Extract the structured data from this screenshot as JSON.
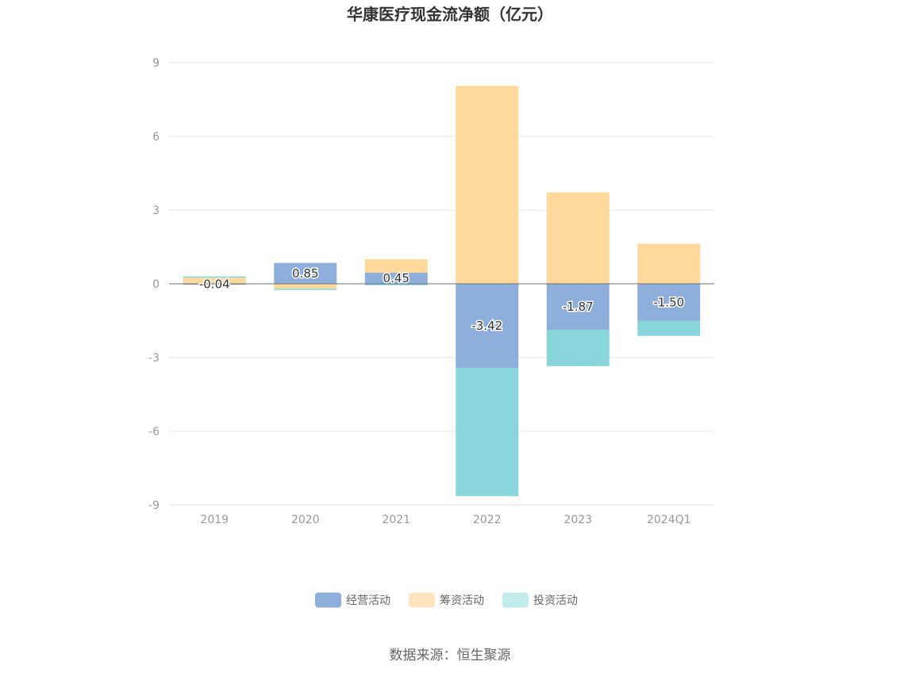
{
  "chart_data": {
    "type": "bar",
    "stacked": true,
    "title": "华康医疗现金流净额（亿元）",
    "categories": [
      "2019",
      "2020",
      "2021",
      "2022",
      "2023",
      "2024Q1"
    ],
    "ylim": [
      -9,
      9
    ],
    "yticks": [
      9,
      6,
      3,
      0,
      -3,
      -6,
      -9
    ],
    "grid": true,
    "legend_position": "bottom",
    "series": [
      {
        "name": "经营活动",
        "color": "#8EAEDC",
        "values": [
          -0.04,
          0.85,
          0.45,
          -3.42,
          -1.87,
          -1.5
        ],
        "labels": [
          "-0.04",
          "0.85",
          "0.45",
          "-3.42",
          "-1.87",
          "-1.50"
        ]
      },
      {
        "name": "筹资活动",
        "color": "#FFD89C",
        "values": [
          0.25,
          -0.2,
          0.55,
          8.05,
          3.72,
          1.63
        ]
      },
      {
        "name": "投资活动",
        "color": "#88D6DA",
        "values": [
          0.05,
          -0.05,
          -0.06,
          -5.22,
          -1.48,
          -0.62
        ]
      }
    ]
  },
  "legend_colors": {
    "经营活动": "#8EAEDC",
    "筹资活动": "#FFE4C0",
    "投资活动": "#C2EBEC"
  },
  "source": "数据来源：恒生聚源"
}
